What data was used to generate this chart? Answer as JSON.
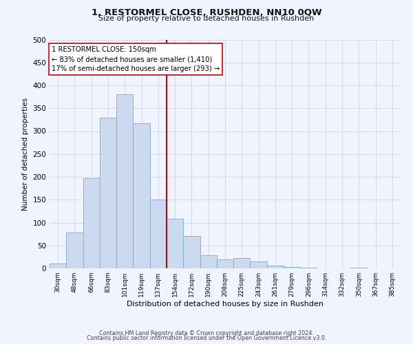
{
  "title": "1, RESTORMEL CLOSE, RUSHDEN, NN10 0QW",
  "subtitle": "Size of property relative to detached houses in Rushden",
  "xlabel": "Distribution of detached houses by size in Rushden",
  "ylabel": "Number of detached properties",
  "bin_labels": [
    "30sqm",
    "48sqm",
    "66sqm",
    "83sqm",
    "101sqm",
    "119sqm",
    "137sqm",
    "154sqm",
    "172sqm",
    "190sqm",
    "208sqm",
    "225sqm",
    "243sqm",
    "261sqm",
    "279sqm",
    "296sqm",
    "314sqm",
    "332sqm",
    "350sqm",
    "367sqm",
    "385sqm"
  ],
  "bar_heights": [
    10,
    78,
    197,
    330,
    380,
    318,
    150,
    108,
    71,
    29,
    20,
    22,
    15,
    6,
    3,
    1,
    0,
    0,
    1,
    0,
    0
  ],
  "bar_color": "#ccdaf0",
  "bar_edge_color": "#7aaad4",
  "vline_color": "#cc0000",
  "annotation_text": "1 RESTORMEL CLOSE: 150sqm\n← 83% of detached houses are smaller (1,410)\n17% of semi-detached houses are larger (293) →",
  "annotation_box_color": "#ffffff",
  "annotation_box_edge_color": "#cc0000",
  "ylim": [
    0,
    500
  ],
  "yticks": [
    0,
    50,
    100,
    150,
    200,
    250,
    300,
    350,
    400,
    450,
    500
  ],
  "footer_line1": "Contains HM Land Registry data © Crown copyright and database right 2024.",
  "footer_line2": "Contains public sector information licensed under the Open Government Licence v3.0.",
  "bg_color": "#f0f4ff",
  "grid_color": "#c8cce0"
}
